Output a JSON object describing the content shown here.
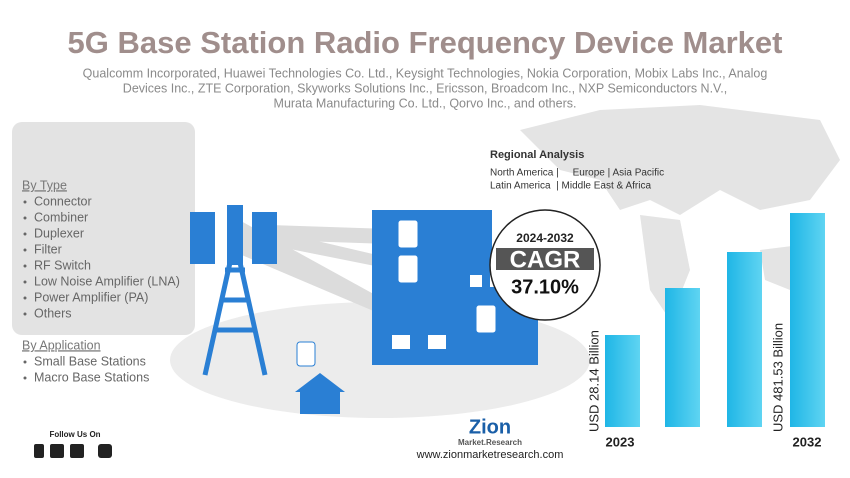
{
  "header": {
    "title": "5G Base Station Radio Frequency Device Market",
    "subtitle_lines": [
      "Qualcomm Incorporated, Huawei Technologies Co. Ltd., Keysight Technologies, Nokia Corporation, Mobix Labs Inc., Analog",
      "Devices Inc., ZTE Corporation, Skyworks Solutions Inc., Ericsson, Broadcom Inc., NXP Semiconductors N.V.,",
      "Murata Manufacturing Co. Ltd., Qorvo Inc., and others."
    ]
  },
  "segments": [
    {
      "heading": "By Type",
      "items": [
        "Connector",
        "Combiner",
        "Duplexer",
        "Filter",
        "RF Switch",
        "Low Noise Amplifier (LNA)",
        "Power Amplifier (PA)",
        "Others"
      ]
    },
    {
      "heading": "By Application",
      "items": [
        "Small Base Stations",
        "Macro Base Stations"
      ]
    }
  ],
  "regional": {
    "heading": "Regional Analysis",
    "lines": [
      "North America |     Europe | Asia Pacific",
      "Latin America  | Middle East & Africa"
    ]
  },
  "cagr": {
    "period": "2024-2032",
    "label": "CAGR",
    "value": "37.10%"
  },
  "market": {
    "start_label": "USD 28.14 Billion",
    "end_label": "USD 481.53 Billion",
    "start_year": "2023",
    "end_year": "2032"
  },
  "footer": {
    "follow": "Follow Us On",
    "brand": "Zion",
    "brand_sub": "Market.Research",
    "url": "www.zionmarketresearch.com"
  }
}
